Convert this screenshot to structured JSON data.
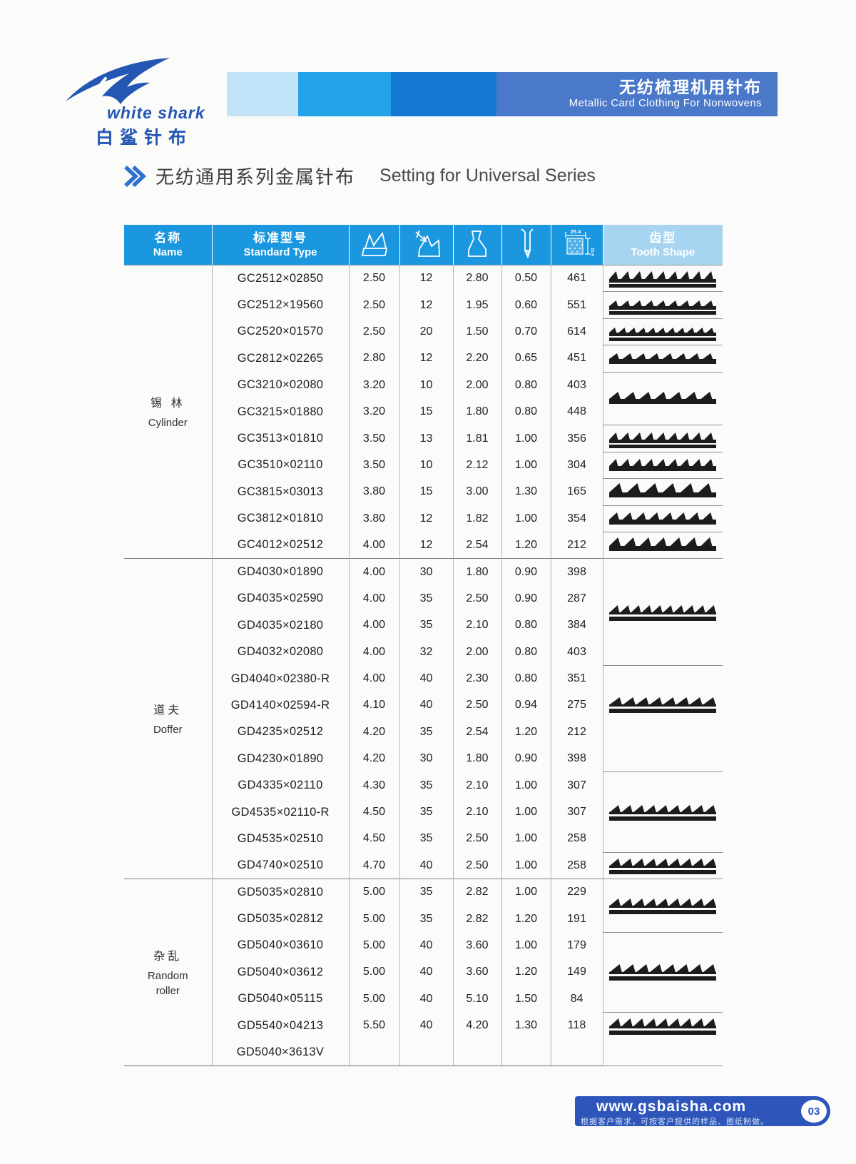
{
  "logo": {
    "line1": "white shark",
    "line2": "白鲨针布"
  },
  "banner": {
    "title_cn": "无纺梳理机用针布",
    "title_en": "Metallic Card Clothing For Nonwovens"
  },
  "section_title": {
    "cn": "无纺通用系列金属针布",
    "en": "Setting for Universal Series"
  },
  "colors": {
    "header_blue": "#1b97e0",
    "header_light_blue": "#a7d5f1",
    "banner_main_blue": "#4b79ca",
    "footer_blue": "#2d55ba",
    "logo_blue": "#2456b4"
  },
  "table": {
    "headers": {
      "name_cn": "名称",
      "name_en": "Name",
      "type_cn": "标准型号",
      "type_en": "Standard Type",
      "tooth_cn": "齿型",
      "tooth_en": "Tooth Shape",
      "density_label": "25.4",
      "icon_cols": [
        "tooth-total-height-icon",
        "tooth-angle-icon",
        "tooth-depth-icon",
        "rib-thickness-icon",
        "point-density-icon"
      ]
    },
    "sections": [
      {
        "name_lines": [
          "锡 林",
          "Cylinder"
        ],
        "rows": [
          {
            "type": "GC2512×02850",
            "v": [
              "2.50",
              "12",
              "2.80",
              "0.50",
              "461"
            ]
          },
          {
            "type": "GC2512×19560",
            "v": [
              "2.50",
              "12",
              "1.95",
              "0.60",
              "551"
            ]
          },
          {
            "type": "GC2520×01570",
            "v": [
              "2.50",
              "20",
              "1.50",
              "0.70",
              "614"
            ]
          },
          {
            "type": "GC2812×02265",
            "v": [
              "2.80",
              "12",
              "2.20",
              "0.65",
              "451"
            ]
          },
          {
            "type": "GC3210×02080",
            "v": [
              "3.20",
              "10",
              "2.00",
              "0.80",
              "403"
            ]
          },
          {
            "type": "GC3215×01880",
            "v": [
              "3.20",
              "15",
              "1.80",
              "0.80",
              "448"
            ]
          },
          {
            "type": "GC3513×01810",
            "v": [
              "3.50",
              "13",
              "1.81",
              "1.00",
              "356"
            ]
          },
          {
            "type": "GC3510×02110",
            "v": [
              "3.50",
              "10",
              "2.12",
              "1.00",
              "304"
            ]
          },
          {
            "type": "GC3815×03013",
            "v": [
              "3.80",
              "15",
              "3.00",
              "1.30",
              "165"
            ]
          },
          {
            "type": "GC3812×01810",
            "v": [
              "3.80",
              "12",
              "1.82",
              "1.00",
              "354"
            ]
          },
          {
            "type": "GC4012×02512",
            "v": [
              "4.00",
              "12",
              "2.54",
              "1.20",
              "212"
            ]
          }
        ]
      },
      {
        "name_lines": [
          "道夫",
          "Doffer"
        ],
        "rows": [
          {
            "type": "GD4030×01890",
            "v": [
              "4.00",
              "30",
              "1.80",
              "0.90",
              "398"
            ]
          },
          {
            "type": "GD4035×02590",
            "v": [
              "4.00",
              "35",
              "2.50",
              "0.90",
              "287"
            ]
          },
          {
            "type": "GD4035×02180",
            "v": [
              "4.00",
              "35",
              "2.10",
              "0.80",
              "384"
            ]
          },
          {
            "type": "GD4032×02080",
            "v": [
              "4.00",
              "32",
              "2.00",
              "0.80",
              "403"
            ]
          },
          {
            "type": "GD4040×02380-R",
            "v": [
              "4.00",
              "40",
              "2.30",
              "0.80",
              "351"
            ]
          },
          {
            "type": "GD4140×02594-R",
            "v": [
              "4.10",
              "40",
              "2.50",
              "0.94",
              "275"
            ]
          },
          {
            "type": "GD4235×02512",
            "v": [
              "4.20",
              "35",
              "2.54",
              "1.20",
              "212"
            ]
          },
          {
            "type": "GD4230×01890",
            "v": [
              "4.20",
              "30",
              "1.80",
              "0.90",
              "398"
            ]
          },
          {
            "type": "GD4335×02110",
            "v": [
              "4.30",
              "35",
              "2.10",
              "1.00",
              "307"
            ]
          },
          {
            "type": "GD4535×02110-R",
            "v": [
              "4.50",
              "35",
              "2.10",
              "1.00",
              "307"
            ]
          },
          {
            "type": "GD4535×02510",
            "v": [
              "4.50",
              "35",
              "2.50",
              "1.00",
              "258"
            ]
          },
          {
            "type": "GD4740×02510",
            "v": [
              "4.70",
              "40",
              "2.50",
              "1.00",
              "258"
            ]
          }
        ]
      },
      {
        "name_lines": [
          "杂乱",
          "Random",
          "roller"
        ],
        "rows": [
          {
            "type": "GD5035×02810",
            "v": [
              "5.00",
              "35",
              "2.82",
              "1.00",
              "229"
            ]
          },
          {
            "type": "GD5035×02812",
            "v": [
              "5.00",
              "35",
              "2.82",
              "1.20",
              "191"
            ]
          },
          {
            "type": "GD5040×03610",
            "v": [
              "5.00",
              "40",
              "3.60",
              "1.00",
              "179"
            ]
          },
          {
            "type": "GD5040×03612",
            "v": [
              "5.00",
              "40",
              "3.60",
              "1.20",
              "149"
            ]
          },
          {
            "type": "GD5040×05115",
            "v": [
              "5.00",
              "40",
              "5.10",
              "1.50",
              "84"
            ]
          },
          {
            "type": "GD5540×04213",
            "v": [
              "5.50",
              "40",
              "4.20",
              "1.30",
              "118"
            ]
          },
          {
            "type": "GD5040×3613V",
            "v": [
              "",
              "",
              "",
              "",
              ""
            ]
          }
        ]
      }
    ],
    "tooth_cells": [
      {
        "section": 0,
        "row": 0,
        "span": 1,
        "style": "block",
        "teeth": 9,
        "tall": 11,
        "bars": 2
      },
      {
        "section": 0,
        "row": 1,
        "span": 1,
        "style": "block",
        "teeth": 9,
        "tall": 8,
        "bars": 2
      },
      {
        "section": 0,
        "row": 2,
        "span": 1,
        "style": "block",
        "teeth": 11,
        "tall": 7,
        "bars": 2
      },
      {
        "section": 0,
        "row": 3,
        "span": 1,
        "style": "block",
        "teeth": 8,
        "tall": 8,
        "bars": 1
      },
      {
        "section": 0,
        "row": 4,
        "span": 2,
        "style": "block",
        "teeth": 7,
        "tall": 10,
        "bars": 1
      },
      {
        "section": 0,
        "row": 6,
        "span": 1,
        "style": "block",
        "teeth": 9,
        "tall": 10,
        "bars": 2
      },
      {
        "section": 0,
        "row": 7,
        "span": 1,
        "style": "block",
        "teeth": 9,
        "tall": 10,
        "bars": 1
      },
      {
        "section": 0,
        "row": 8,
        "span": 1,
        "style": "block",
        "teeth": 6,
        "tall": 13,
        "bars": 1
      },
      {
        "section": 0,
        "row": 9,
        "span": 1,
        "style": "block",
        "teeth": 8,
        "tall": 10,
        "bars": 1
      },
      {
        "section": 0,
        "row": 10,
        "span": 1,
        "style": "block",
        "teeth": 7,
        "tall": 12,
        "bars": 1
      },
      {
        "section": 1,
        "row": 0,
        "span": 4,
        "style": "spike",
        "teeth": 10,
        "tall": 10
      },
      {
        "section": 1,
        "row": 4,
        "span": 4,
        "style": "spike",
        "teeth": 8,
        "tall": 10,
        "align": "upper"
      },
      {
        "section": 1,
        "row": 8,
        "span": 3,
        "style": "spike",
        "teeth": 9,
        "tall": 10
      },
      {
        "section": 1,
        "row": 11,
        "span": 1,
        "style": "spike",
        "teeth": 9,
        "tall": 10
      },
      {
        "section": 2,
        "row": 0,
        "span": 2,
        "style": "spike",
        "teeth": 9,
        "tall": 10
      },
      {
        "section": 2,
        "row": 2,
        "span": 3,
        "style": "spike",
        "teeth": 8,
        "tall": 11
      },
      {
        "section": 2,
        "row": 5,
        "span": 2,
        "style": "spike",
        "teeth": 9,
        "tall": 11,
        "align": "upper"
      }
    ]
  },
  "footer": {
    "url": "www.gsbaisha.com",
    "note": "根据客户需求，可按客户提供的样品、图纸制做。",
    "page": "03"
  }
}
